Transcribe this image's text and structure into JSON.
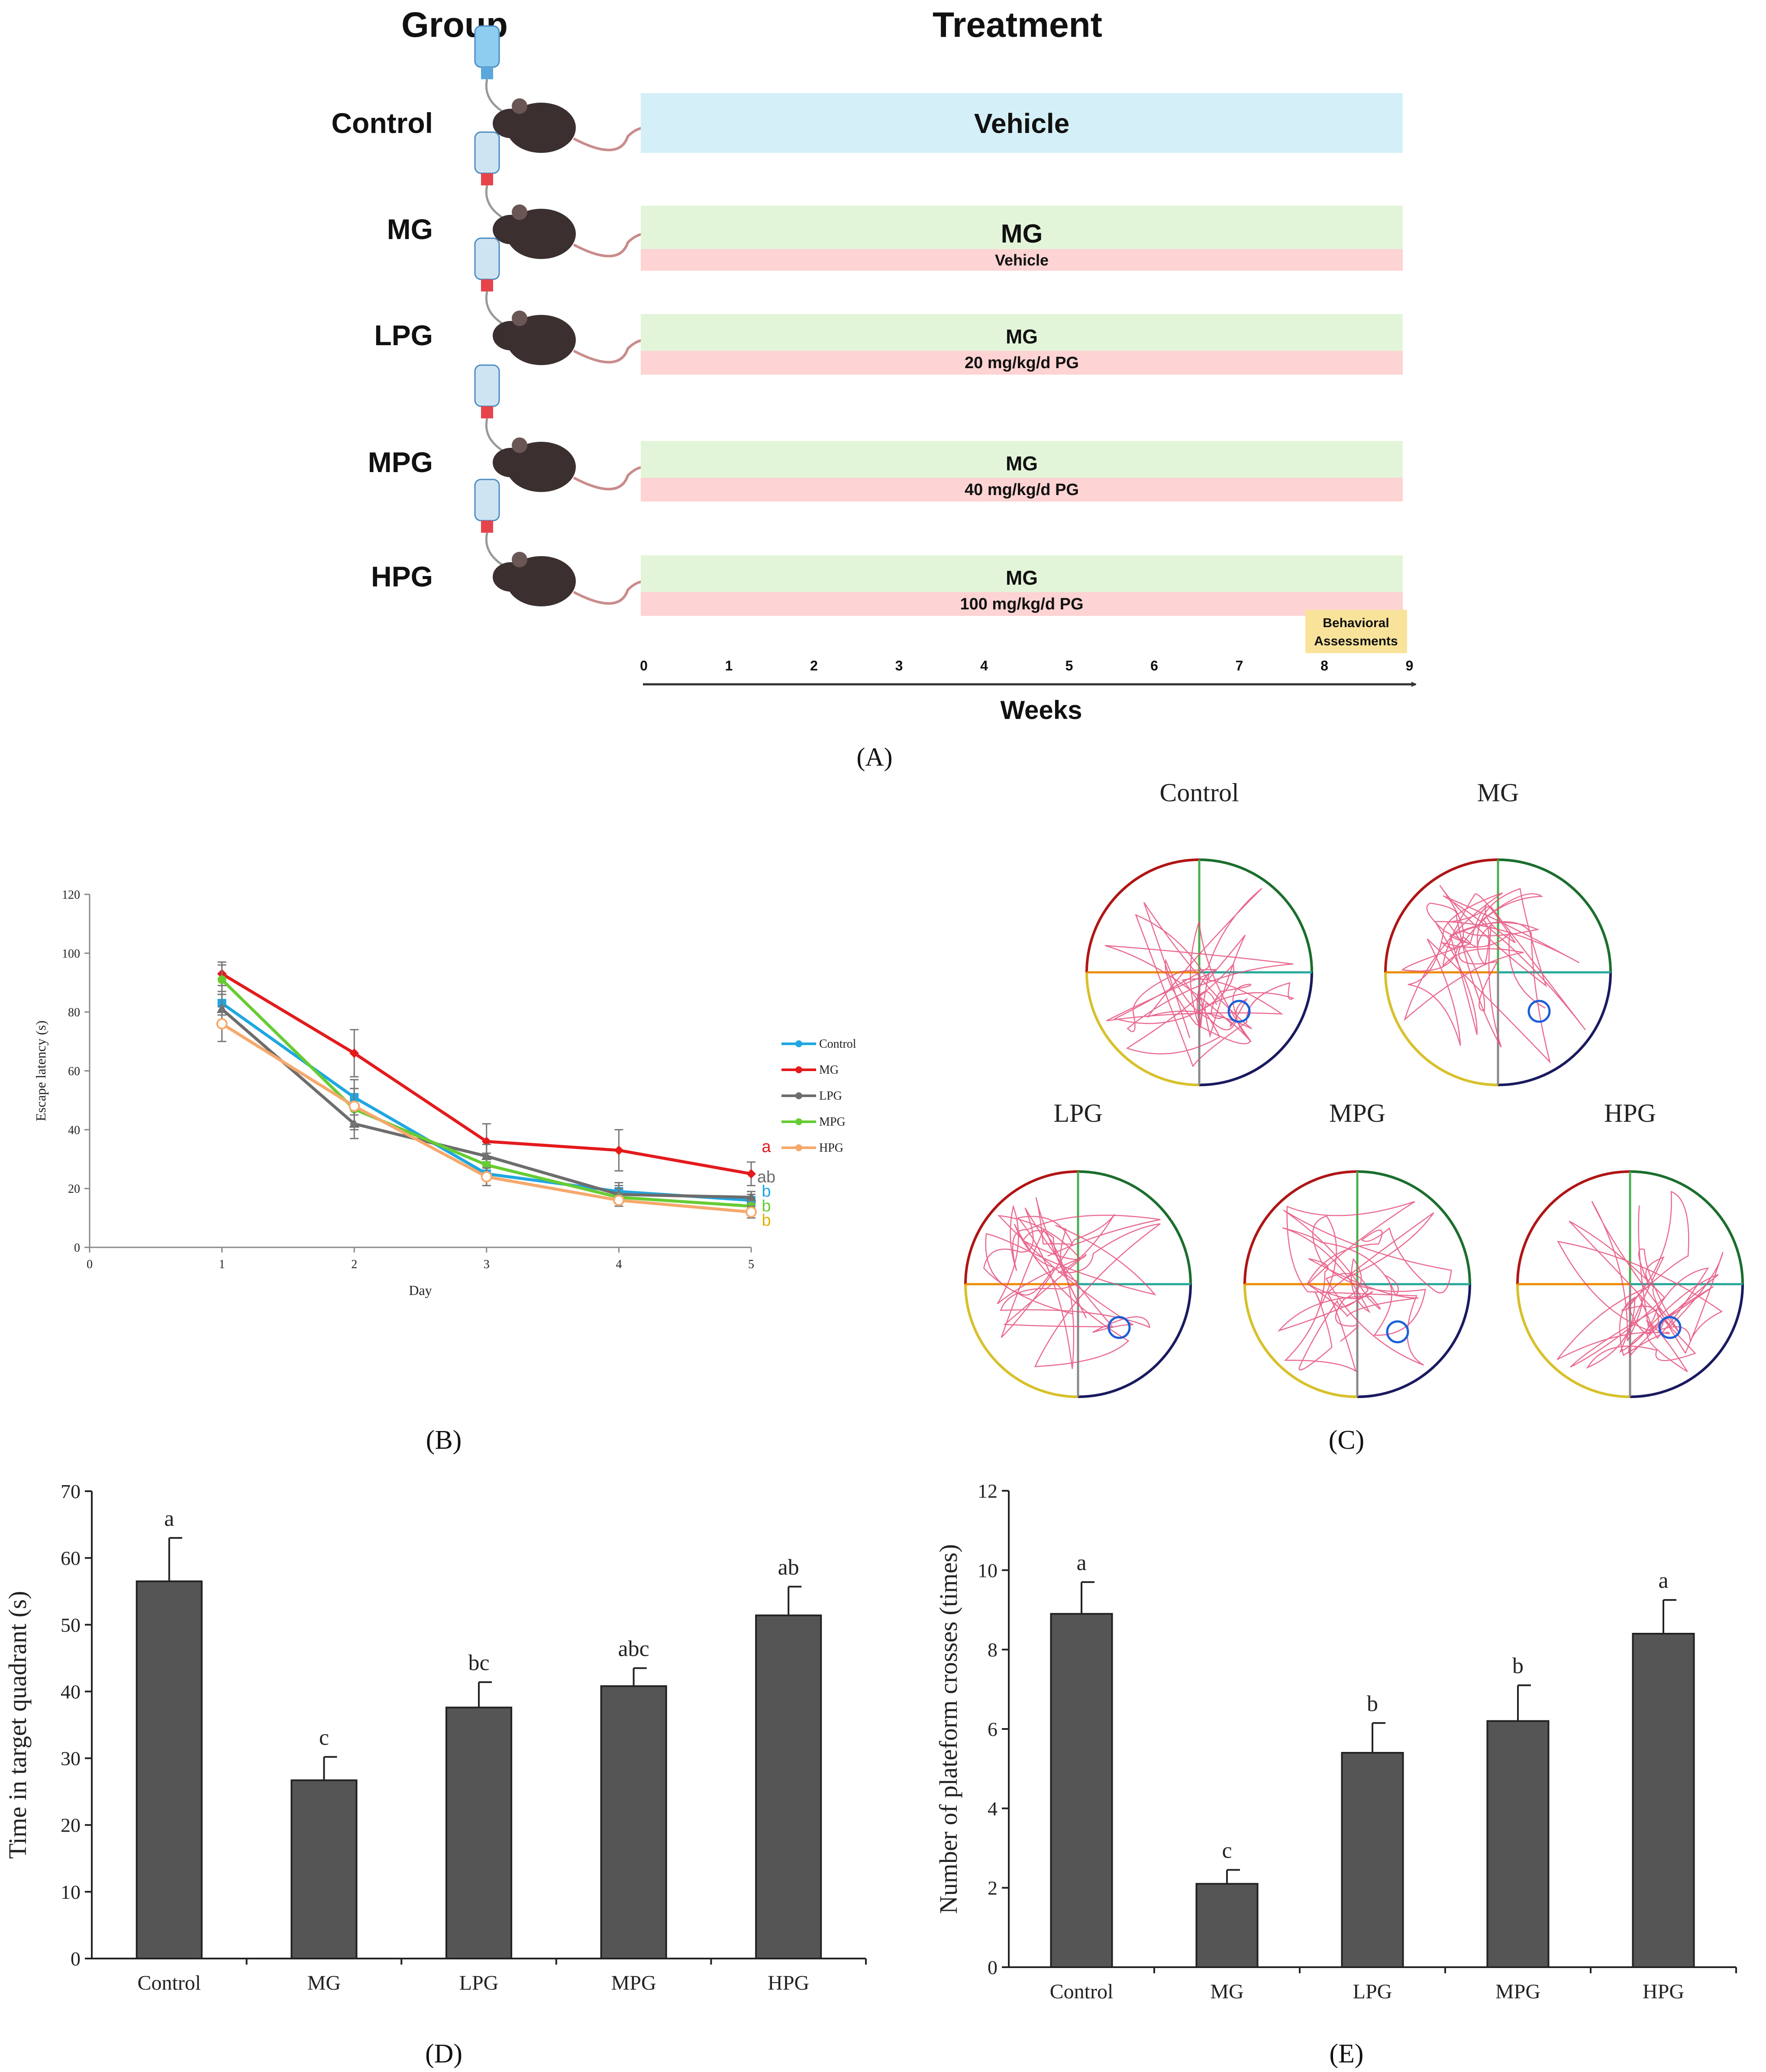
{
  "colors": {
    "vehicle_bar": "#d4eff7",
    "mg_bar": "#e3f5d9",
    "pg_bar": "#fdd3d3",
    "behav_box": "#f9e39a",
    "bar_fill": "#555555",
    "bottle_blue": "#5aa7dc",
    "cap_red": "#e5454a",
    "mouse": "#3b2f2f",
    "path": "#e64d7a",
    "platform": "#1a5fd8",
    "series_control": "#1fa7e1",
    "series_mg": "#e41a1c",
    "series_lpg": "#6d6d6d",
    "series_mpg": "#66cc33",
    "series_hpg": "#f6a86b",
    "letter_gold": "#e0b000"
  },
  "panelA": {
    "group_header": "Group",
    "treatment_header": "Treatment",
    "rows": [
      {
        "group": "Control",
        "top_label": "Vehicle",
        "bottom_label": "",
        "bottle_icon": "water-bottle-icon",
        "mouse_icon": "mouse-icon"
      },
      {
        "group": "MG",
        "top_label": "MG",
        "bottom_label": "Vehicle",
        "bottle_icon": "drug-bottle-icon",
        "mouse_icon": "mouse-icon"
      },
      {
        "group": "LPG",
        "top_label": "MG",
        "bottom_label": "20 mg/kg/d PG",
        "bottle_icon": "drug-bottle-icon",
        "mouse_icon": "mouse-icon"
      },
      {
        "group": "MPG",
        "top_label": "MG",
        "bottom_label": "40 mg/kg/d PG",
        "bottle_icon": "drug-bottle-icon",
        "mouse_icon": "mouse-icon"
      },
      {
        "group": "HPG",
        "top_label": "MG",
        "bottom_label": "100 mg/kg/d PG",
        "bottle_icon": "drug-bottle-icon",
        "mouse_icon": "mouse-icon"
      }
    ],
    "behavioral_label_1": "Behavioral",
    "behavioral_label_2": "Assessments",
    "week_ticks": [
      "0",
      "1",
      "2",
      "3",
      "4",
      "5",
      "6",
      "7",
      "8",
      "9"
    ],
    "axis_label": "Weeks",
    "panel_label": "(A)"
  },
  "panelC": {
    "panel_label": "(C)",
    "titles": [
      "Control",
      "MG",
      "LPG",
      "MPG",
      "HPG"
    ]
  },
  "chart_data": [
    {
      "id": "B",
      "type": "line",
      "panel_label": "(B)",
      "xlabel": "Day",
      "ylabel": "Escape latency (s)",
      "xlim": [
        0,
        5
      ],
      "ylim": [
        0,
        120
      ],
      "x_ticks": [
        "0",
        "1",
        "2",
        "3",
        "4",
        "5"
      ],
      "y_ticks": [
        "0",
        "20",
        "40",
        "60",
        "80",
        "100",
        "120"
      ],
      "x": [
        1,
        2,
        3,
        4,
        5
      ],
      "legend_position": "right",
      "series": [
        {
          "name": "Control",
          "values": [
            83,
            51,
            25,
            19,
            16
          ],
          "errors": [
            4,
            6,
            4,
            3,
            2
          ],
          "marker": "square",
          "end_letter": "b"
        },
        {
          "name": "MG",
          "values": [
            93,
            66,
            36,
            33,
            25
          ],
          "errors": [
            4,
            8,
            6,
            7,
            4
          ],
          "marker": "diamond",
          "end_letter": "a"
        },
        {
          "name": "LPG",
          "values": [
            81,
            42,
            31,
            18,
            17
          ],
          "errors": [
            5,
            5,
            4,
            3,
            2
          ],
          "marker": "triangle",
          "end_letter": "ab"
        },
        {
          "name": "MPG",
          "values": [
            91,
            47,
            28,
            17,
            14
          ],
          "errors": [
            5,
            7,
            4,
            3,
            2
          ],
          "marker": "circle",
          "end_letter": "b"
        },
        {
          "name": "HPG",
          "values": [
            76,
            48,
            24,
            16,
            12
          ],
          "errors": [
            6,
            6,
            3,
            2,
            2
          ],
          "marker": "open-circle",
          "end_letter": "b"
        }
      ]
    },
    {
      "id": "D",
      "type": "bar",
      "panel_label": "(D)",
      "ylabel": "Time in target quadrant (s)",
      "xlabel": "",
      "ylim": [
        0,
        70
      ],
      "y_ticks": [
        "0",
        "10",
        "20",
        "30",
        "40",
        "50",
        "60",
        "70"
      ],
      "categories": [
        "Control",
        "MG",
        "LPG",
        "MPG",
        "HPG"
      ],
      "values": [
        56.5,
        26.7,
        37.6,
        40.8,
        51.4
      ],
      "errors": [
        6.5,
        3.5,
        3.8,
        2.7,
        4.3
      ],
      "letters": [
        "a",
        "c",
        "bc",
        "abc",
        "ab"
      ]
    },
    {
      "id": "E",
      "type": "bar",
      "panel_label": "(E)",
      "ylabel": "Number of plateform crosses (times)",
      "xlabel": "",
      "ylim": [
        0,
        12
      ],
      "y_ticks": [
        "0",
        "2",
        "4",
        "6",
        "8",
        "10",
        "12"
      ],
      "categories": [
        "Control",
        "MG",
        "LPG",
        "MPG",
        "HPG"
      ],
      "values": [
        8.9,
        2.1,
        5.4,
        6.2,
        8.4
      ],
      "errors": [
        0.8,
        0.35,
        0.75,
        0.9,
        0.85
      ],
      "letters": [
        "a",
        "c",
        "b",
        "b",
        "a"
      ]
    }
  ]
}
